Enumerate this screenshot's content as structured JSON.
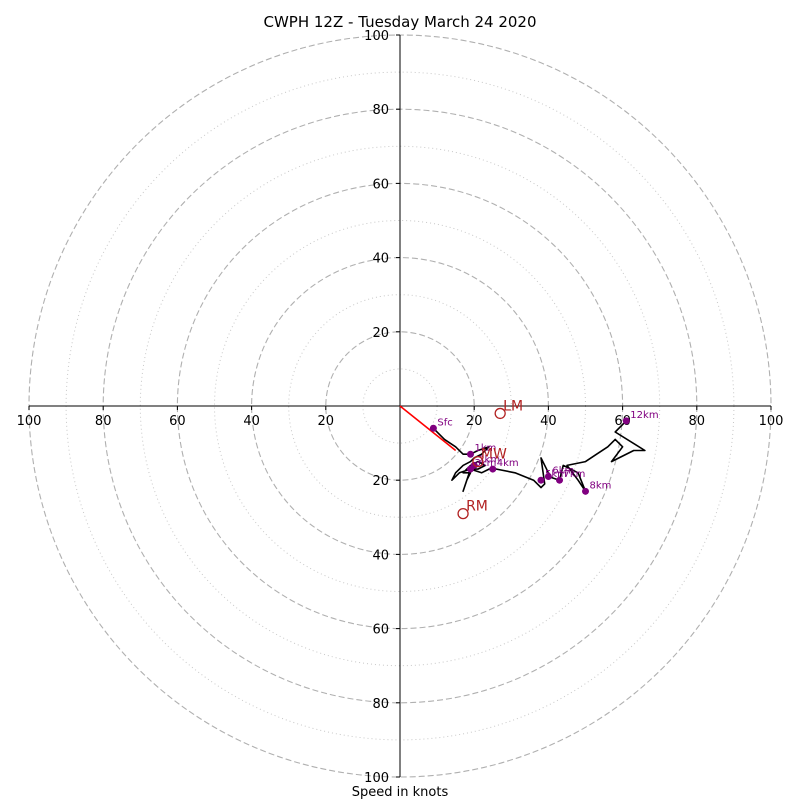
{
  "chart_data": {
    "type": "hodograph",
    "title": "CWPH 12Z - Tuesday March 24 2020",
    "xlabel": "Speed in knots",
    "ylabel": "",
    "xlim": [
      -100,
      100
    ],
    "ylim": [
      -100,
      100
    ],
    "rings": {
      "major": [
        20,
        40,
        60,
        80,
        100
      ],
      "minor": [
        10,
        30,
        50,
        70,
        90
      ]
    },
    "ticks": {
      "x_values": [
        -100,
        -80,
        -60,
        -40,
        -20,
        20,
        40,
        60,
        80,
        100
      ],
      "x_labels": [
        "100",
        "80",
        "60",
        "40",
        "20",
        "20",
        "40",
        "60",
        "80",
        "100"
      ],
      "y_values": [
        100,
        80,
        60,
        40,
        20,
        -20,
        -40,
        -60,
        -80,
        -100
      ],
      "y_labels": [
        "100",
        "80",
        "60",
        "40",
        "20",
        "20",
        "40",
        "60",
        "80",
        "100"
      ]
    },
    "grid": true,
    "colors": {
      "trace": "#000000",
      "points": "#800080",
      "motion": "#b22222",
      "shear_vector": "#ff0000",
      "grid": "#b0b0b0"
    },
    "trace": [
      [
        9,
        -6
      ],
      [
        12,
        -9
      ],
      [
        15,
        -11
      ],
      [
        17,
        -13
      ],
      [
        19,
        -13
      ],
      [
        21,
        -12
      ],
      [
        24,
        -11
      ],
      [
        22,
        -13
      ],
      [
        20,
        -14
      ],
      [
        19,
        -15
      ],
      [
        17,
        -16
      ],
      [
        15,
        -18
      ],
      [
        14,
        -20
      ],
      [
        16,
        -18
      ],
      [
        19,
        -17
      ],
      [
        21,
        -17
      ],
      [
        23,
        -16
      ],
      [
        21,
        -15
      ],
      [
        19,
        -16
      ],
      [
        18,
        -17
      ],
      [
        17,
        -18
      ],
      [
        19,
        -18
      ],
      [
        18,
        -20
      ],
      [
        17,
        -23
      ],
      [
        19,
        -17
      ],
      [
        22,
        -18
      ],
      [
        24,
        -17
      ],
      [
        26,
        -17
      ],
      [
        31,
        -18
      ],
      [
        36,
        -20
      ],
      [
        38,
        -22
      ],
      [
        39,
        -21
      ],
      [
        38,
        -14
      ],
      [
        40,
        -18
      ],
      [
        40,
        -19
      ],
      [
        43,
        -20
      ],
      [
        44,
        -16
      ],
      [
        44,
        -16
      ],
      [
        48,
        -18
      ],
      [
        50,
        -23
      ],
      [
        48,
        -20
      ],
      [
        45,
        -16
      ],
      [
        50,
        -15
      ],
      [
        53,
        -13
      ],
      [
        56,
        -11
      ],
      [
        58,
        -9
      ],
      [
        60,
        -11
      ],
      [
        57,
        -15
      ],
      [
        63,
        -12
      ],
      [
        66,
        -12
      ],
      [
        58,
        -7
      ],
      [
        61,
        -4
      ]
    ],
    "points": [
      {
        "label": "Sfc",
        "u": 9,
        "v": -6
      },
      {
        "label": "1km",
        "u": 19,
        "v": -13
      },
      {
        "label": "2km",
        "u": 20,
        "v": -16
      },
      {
        "label": "3km",
        "u": 19,
        "v": -17
      },
      {
        "label": "4km",
        "u": 25,
        "v": -17
      },
      {
        "label": "5km",
        "u": 38,
        "v": -20
      },
      {
        "label": "6km",
        "u": 40,
        "v": -19
      },
      {
        "label": "7km",
        "u": 43,
        "v": -20
      },
      {
        "label": "8km",
        "u": 50,
        "v": -23
      },
      {
        "label": "12km",
        "u": 61,
        "v": -4
      }
    ],
    "storm_motion": [
      {
        "label": "LM",
        "u": 27,
        "v": -2
      },
      {
        "label": "MW",
        "u": 21,
        "v": -15
      },
      {
        "label": "RM",
        "u": 17,
        "v": -29
      }
    ],
    "shear_vector": {
      "from": [
        0,
        0
      ],
      "to": [
        15,
        -12
      ]
    }
  }
}
